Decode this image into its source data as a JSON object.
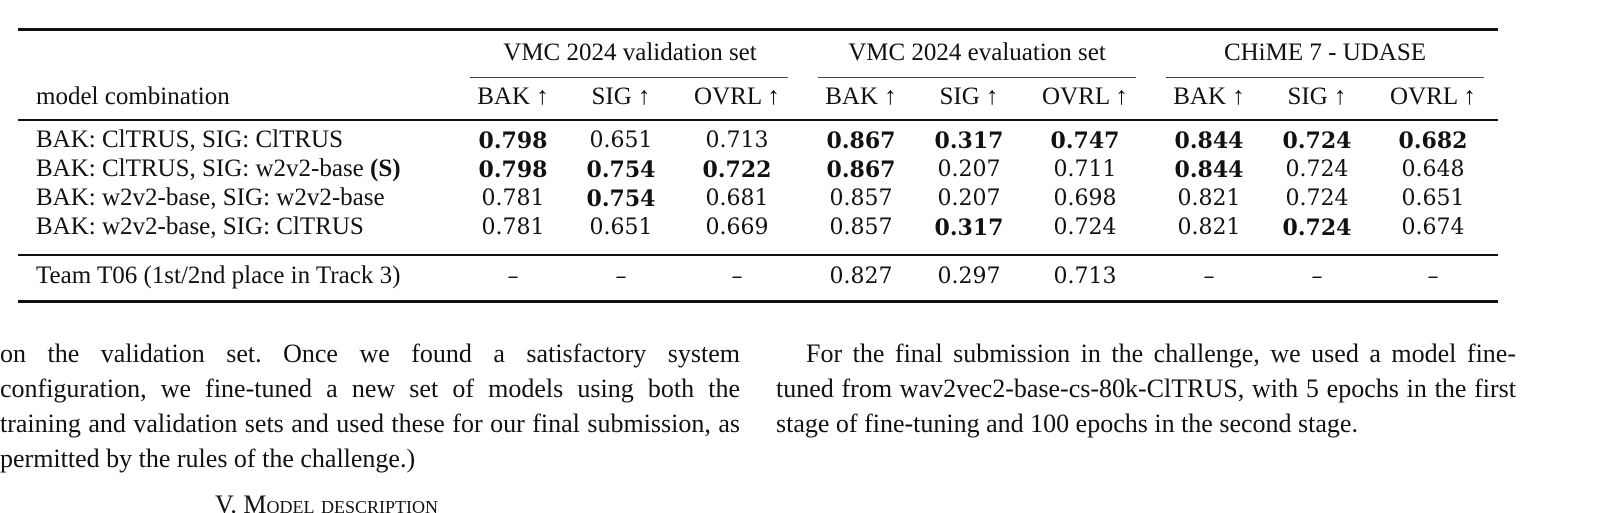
{
  "table": {
    "groups": [
      "VMC 2024 validation set",
      "VMC 2024 evaluation set",
      "CHiME 7 - UDASE"
    ],
    "row_header": "model combination",
    "metrics": [
      "BAK ↑",
      "SIG ↑",
      "OVRL ↑",
      "BAK ↑",
      "SIG ↑",
      "OVRL ↑",
      "BAK ↑",
      "SIG ↑",
      "OVRL ↑"
    ],
    "rows": [
      {
        "label": "BAK: ClTRUS, SIG: ClTRUS",
        "label_suffix": "",
        "values": [
          "0.798",
          "0.651",
          "0.713",
          "0.867",
          "0.317",
          "0.747",
          "0.844",
          "0.724",
          "0.682"
        ],
        "bold": [
          true,
          false,
          false,
          true,
          true,
          true,
          true,
          true,
          true
        ]
      },
      {
        "label": "BAK: ClTRUS, SIG: w2v2-base ",
        "label_suffix": "(S)",
        "values": [
          "0.798",
          "0.754",
          "0.722",
          "0.867",
          "0.207",
          "0.711",
          "0.844",
          "0.724",
          "0.648"
        ],
        "bold": [
          true,
          true,
          true,
          true,
          false,
          false,
          true,
          false,
          false
        ]
      },
      {
        "label": "BAK: w2v2-base, SIG: w2v2-base",
        "label_suffix": "",
        "values": [
          "0.781",
          "0.754",
          "0.681",
          "0.857",
          "0.207",
          "0.698",
          "0.821",
          "0.724",
          "0.651"
        ],
        "bold": [
          false,
          true,
          false,
          false,
          false,
          false,
          false,
          false,
          false
        ]
      },
      {
        "label": "BAK: w2v2-base, SIG: ClTRUS",
        "label_suffix": "",
        "values": [
          "0.781",
          "0.651",
          "0.669",
          "0.857",
          "0.317",
          "0.724",
          "0.821",
          "0.724",
          "0.674"
        ],
        "bold": [
          false,
          false,
          false,
          false,
          true,
          false,
          false,
          true,
          false
        ]
      }
    ],
    "team_row": {
      "label": "Team T06 (1st/2nd place in Track 3)",
      "values": [
        "–",
        "–",
        "–",
        "0.827",
        "0.297",
        "0.713",
        "–",
        "–",
        "–"
      ]
    }
  },
  "body": {
    "left_paragraph": "on the validation set. Once we found a satisfactory system configuration, we fine-tuned a new set of models using both the training and validation sets and used these for our final submission, as permitted by the rules of the challenge.)",
    "right_paragraph": "For the final submission in the challenge, we used a model fine-tuned from wav2vec2-base-cs-80k-ClTRUS, with 5 epochs in the first stage of fine-tuning and 100 epochs in the second stage.",
    "section_heading": "V. Model description"
  }
}
